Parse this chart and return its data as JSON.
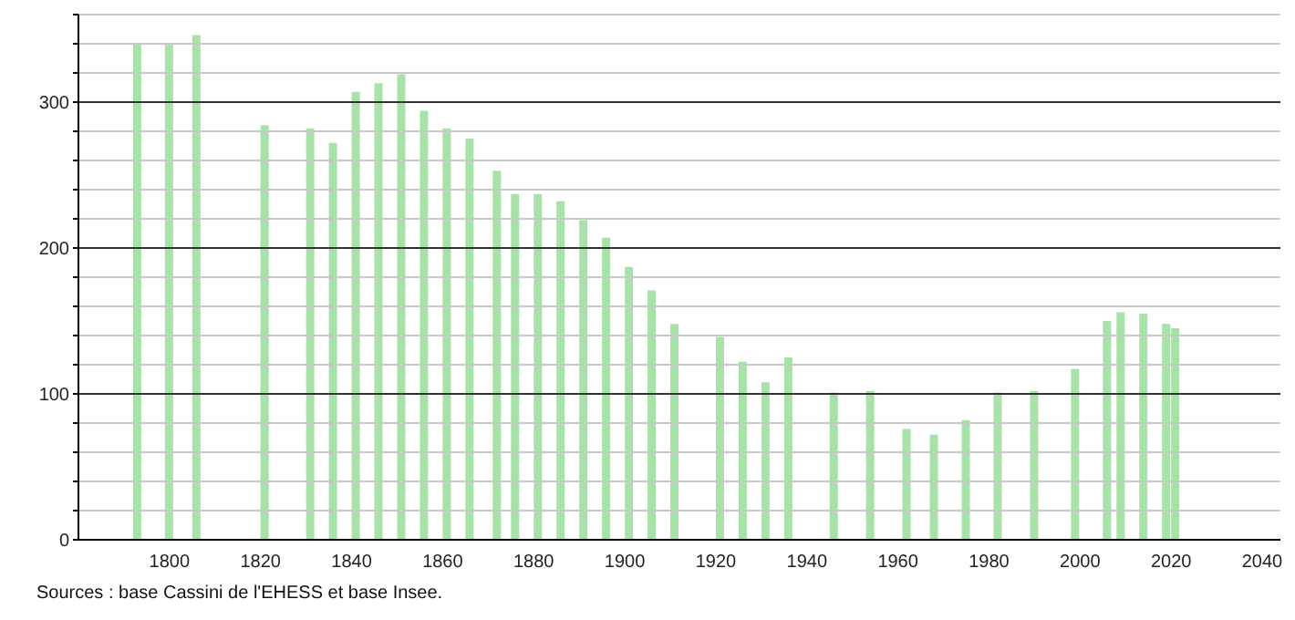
{
  "chart_data": {
    "type": "bar",
    "x": [
      1793,
      1800,
      1806,
      1821,
      1831,
      1836,
      1841,
      1846,
      1851,
      1856,
      1861,
      1866,
      1872,
      1876,
      1881,
      1886,
      1891,
      1896,
      1901,
      1906,
      1911,
      1921,
      1926,
      1931,
      1936,
      1946,
      1954,
      1962,
      1968,
      1975,
      1982,
      1990,
      1999,
      2006,
      2009,
      2014,
      2019,
      2021
    ],
    "values": [
      340,
      340,
      346,
      284,
      282,
      272,
      307,
      313,
      319,
      294,
      282,
      275,
      253,
      237,
      237,
      232,
      219,
      207,
      187,
      171,
      148,
      139,
      122,
      108,
      125,
      101,
      102,
      76,
      72,
      82,
      101,
      102,
      117,
      150,
      156,
      155,
      148,
      145
    ],
    "color": "#a8e2a8",
    "xlim": [
      1780,
      2044
    ],
    "xticks": [
      1800,
      1820,
      1840,
      1860,
      1880,
      1900,
      1920,
      1940,
      1960,
      1980,
      2000,
      2020,
      2040
    ],
    "ylim": [
      0,
      360
    ],
    "yticks": [
      0,
      {
        "value": 20,
        "label": null
      },
      {
        "value": 40,
        "label": null
      },
      {
        "value": 60,
        "label": null
      },
      {
        "value": 80,
        "label": null
      },
      100,
      {
        "value": 120,
        "label": null
      },
      {
        "value": 140,
        "label": null
      },
      {
        "value": 160,
        "label": null
      },
      {
        "value": 180,
        "label": null
      },
      200,
      {
        "value": 220,
        "label": null
      },
      {
        "value": 240,
        "label": null
      },
      {
        "value": 260,
        "label": null
      },
      {
        "value": 280,
        "label": null
      },
      300,
      {
        "value": 320,
        "label": null
      },
      {
        "value": 340,
        "label": null
      },
      {
        "value": 360,
        "label": null
      }
    ],
    "grid": "y",
    "annotations": [
      "Sources : base Cassini de l'EHESS et base Insee."
    ]
  }
}
